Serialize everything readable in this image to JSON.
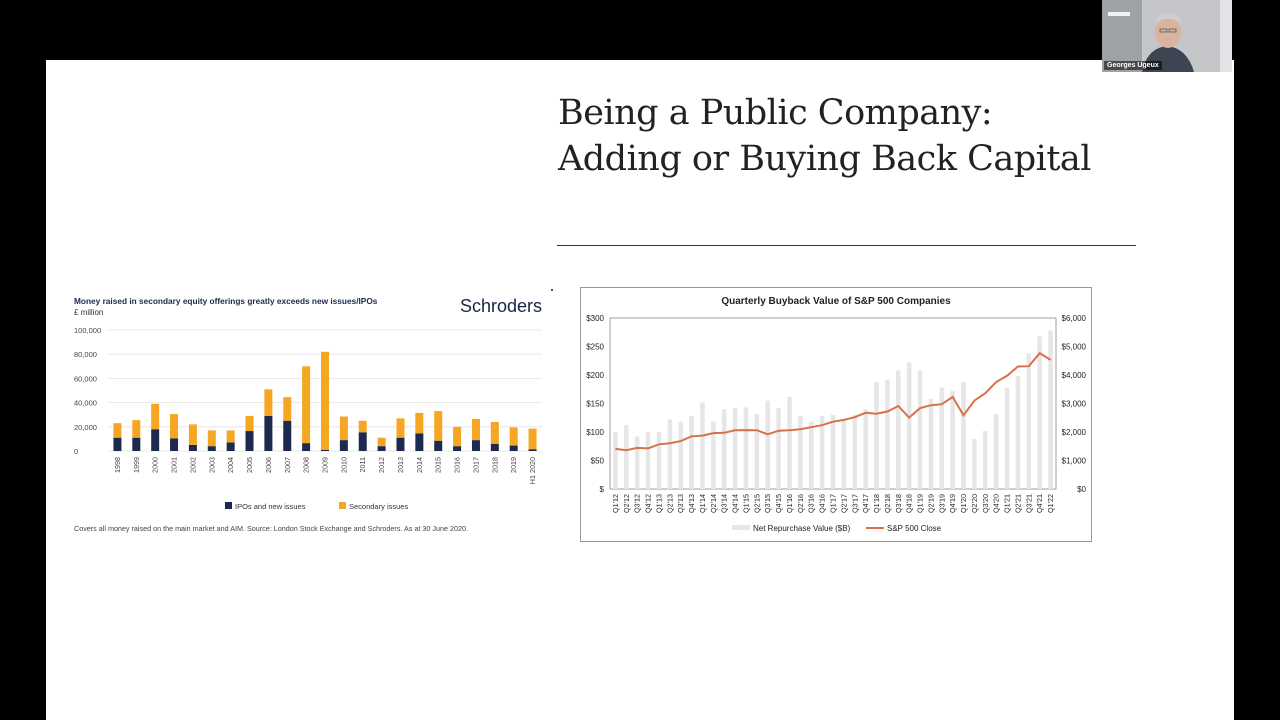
{
  "slide": {
    "title_line1": "Being a Public Company:",
    "title_line2": "Adding or Buying Back Capital"
  },
  "video_tile": {
    "name": "Georges Ugeux"
  },
  "chart_data": [
    {
      "type": "bar",
      "stacked": true,
      "title": "Money raised in secondary equity offerings greatly exceeds new issues/IPOs",
      "subtitle": "£ million",
      "brand": "Schroders",
      "brand_color": "#1a2445",
      "categories": [
        "1998",
        "1999",
        "2000",
        "2001",
        "2002",
        "2003",
        "2004",
        "2005",
        "2006",
        "2007",
        "2008",
        "2009",
        "2010",
        "2011",
        "2012",
        "2013",
        "2014",
        "2015",
        "2016",
        "2017",
        "2018",
        "2019",
        "H1 2020"
      ],
      "series": [
        {
          "name": "IPOs and new issues",
          "color": "#1d2a4f",
          "values": [
            11000,
            11000,
            18000,
            10500,
            5000,
            4000,
            7000,
            16500,
            29000,
            25000,
            6500,
            1000,
            9000,
            15500,
            4000,
            11000,
            14500,
            8500,
            4000,
            9000,
            6000,
            4500,
            1500
          ]
        },
        {
          "name": "Secondary issues",
          "color": "#f5a623",
          "values": [
            12000,
            14500,
            21000,
            20000,
            17000,
            13000,
            10000,
            12500,
            22000,
            19500,
            63500,
            81000,
            19500,
            9500,
            7000,
            16000,
            17000,
            24500,
            16000,
            17500,
            18000,
            15000,
            17000
          ]
        }
      ],
      "yticks": [
        "100,000",
        "80,000",
        "60,000",
        "40,000",
        "20,000",
        "0"
      ],
      "ylim": [
        0,
        100000
      ],
      "legend": "bottom-center",
      "footnote": "Covers all money raised on the main market and AIM. Source: London Stock Exchange and Schroders. As at 30 June 2020."
    },
    {
      "type": "bar",
      "combo_line": true,
      "title": "Quarterly Buyback Value of S&P 500 Companies",
      "categories": [
        "Q1'12",
        "Q2'12",
        "Q3'12",
        "Q4'12",
        "Q1'13",
        "Q2'13",
        "Q3'13",
        "Q4'13",
        "Q1'14",
        "Q2'14",
        "Q3'14",
        "Q4'14",
        "Q1'15",
        "Q2'15",
        "Q3'15",
        "Q4'15",
        "Q1'16",
        "Q2'16",
        "Q3'16",
        "Q4'16",
        "Q1'17",
        "Q2'17",
        "Q3'17",
        "Q4'17",
        "Q1'18",
        "Q2'18",
        "Q3'18",
        "Q4'18",
        "Q1'19",
        "Q2'19",
        "Q3'19",
        "Q4'19",
        "Q1'20",
        "Q2'20",
        "Q3'20",
        "Q4'20",
        "Q1'21",
        "Q2'21",
        "Q3'21",
        "Q4'21",
        "Q1'22"
      ],
      "series": [
        {
          "name": "Net Repurchase Value ($B)",
          "color": "#e6e6e6",
          "axis": "left",
          "values": [
            100,
            112,
            92,
            100,
            100,
            122,
            118,
            128,
            152,
            118,
            140,
            142,
            143,
            132,
            155,
            142,
            162,
            128,
            118,
            128,
            130,
            120,
            130,
            140,
            188,
            192,
            208,
            222,
            207,
            158,
            178,
            172,
            188,
            88,
            102,
            132,
            178,
            198,
            238,
            268,
            278
          ]
        },
        {
          "name": "S&P 500 Close",
          "color": "#d9704a",
          "axis": "right",
          "values": [
            1408,
            1362,
            1441,
            1426,
            1569,
            1606,
            1682,
            1848,
            1872,
            1960,
            1972,
            2059,
            2068,
            2063,
            1920,
            2044,
            2060,
            2099,
            2168,
            2239,
            2363,
            2423,
            2519,
            2674,
            2641,
            2718,
            2914,
            2507,
            2834,
            2942,
            2977,
            3231,
            2585,
            3100,
            3363,
            3756,
            3973,
            4298,
            4308,
            4766,
            4530
          ]
        }
      ],
      "ylim_left": [
        0,
        300
      ],
      "ylim_right": [
        0,
        6000
      ],
      "yticks_left": [
        "$300",
        "$250",
        "$200",
        "$150",
        "$100",
        "$50",
        "$"
      ],
      "yticks_right": [
        "$6,000",
        "$5,000",
        "$4,000",
        "$3,000",
        "$2,000",
        "$1,000",
        "$0"
      ],
      "legend": "bottom-center"
    }
  ]
}
